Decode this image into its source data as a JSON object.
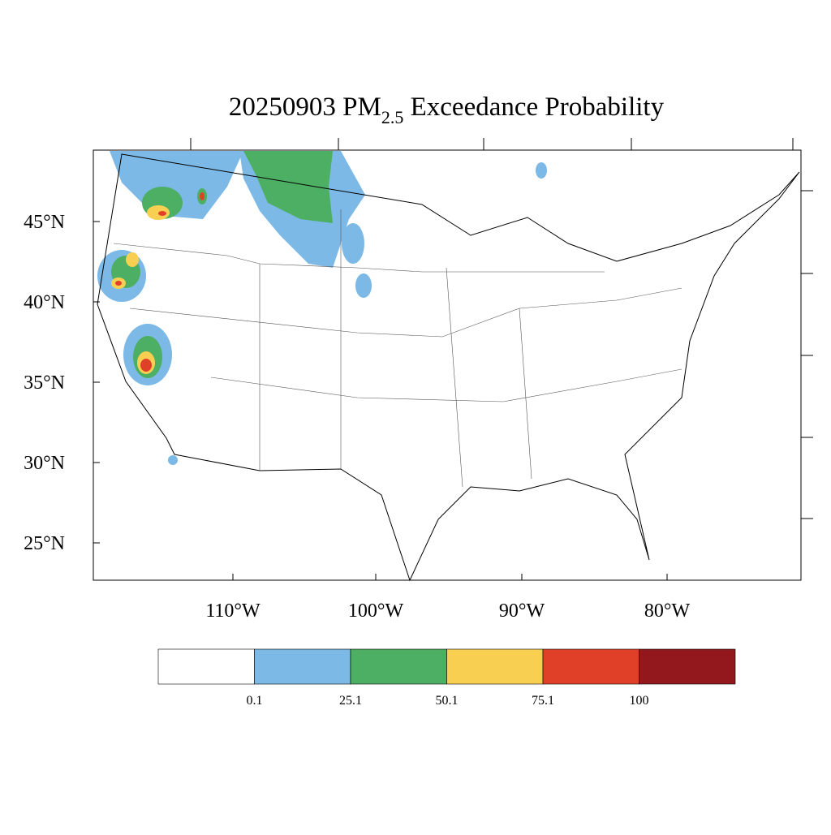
{
  "title": {
    "prefix": "20250903 PM",
    "subscript": "2.5",
    "suffix": " Exceedance Probability"
  },
  "lat_labels": [
    "45°N",
    "40°N",
    "35°N",
    "30°N",
    "25°N"
  ],
  "lon_labels": [
    "110°W",
    "100°W",
    "90°W",
    "80°W"
  ],
  "colorbar": {
    "colors": [
      "#ffffff",
      "#7cb9e6",
      "#4caf63",
      "#f9cf52",
      "#e04028",
      "#92181d"
    ],
    "labels": [
      0.1,
      25.1,
      50.1,
      75.1,
      100
    ]
  }
}
